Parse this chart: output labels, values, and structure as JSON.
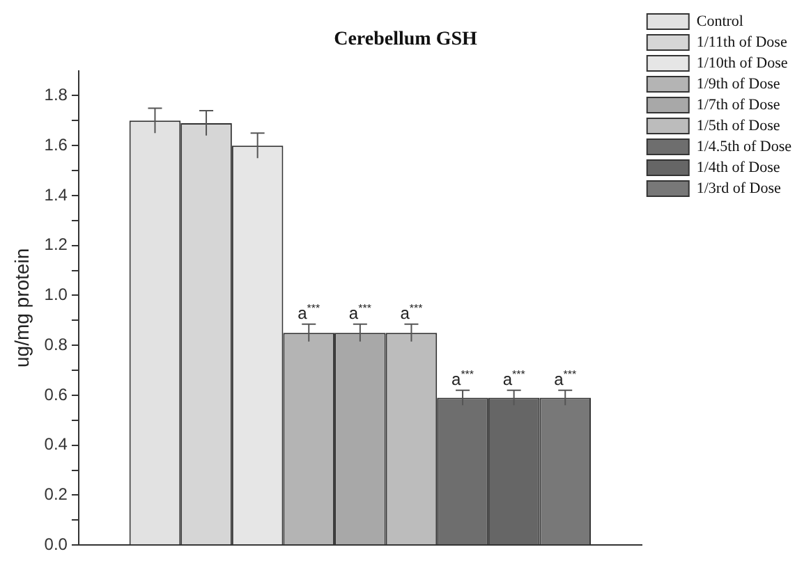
{
  "chart_data": {
    "type": "bar",
    "title": "Cerebellum GSH",
    "ylabel": "ug/mg protein",
    "categories": [
      null
    ],
    "series": [
      {
        "name": "Control",
        "color": "#e2e2e2",
        "values": [
          1.7
        ],
        "errors": [
          0.05
        ]
      },
      {
        "name": "1/11th of Dose",
        "color": "#d6d6d6",
        "values": [
          1.69
        ],
        "errors": [
          0.05
        ]
      },
      {
        "name": "1/10th of Dose",
        "color": "#e6e6e6",
        "values": [
          1.6
        ],
        "errors": [
          0.05
        ]
      },
      {
        "name": "1/9th of Dose",
        "color": "#b4b4b4",
        "values": [
          0.85
        ],
        "errors": [
          0.035
        ]
      },
      {
        "name": "1/7th of Dose",
        "color": "#a8a8a8",
        "values": [
          0.85
        ],
        "errors": [
          0.035
        ]
      },
      {
        "name": "1/5th of Dose",
        "color": "#bcbcbc",
        "values": [
          0.85
        ],
        "errors": [
          0.035
        ]
      },
      {
        "name": "1/4.5th of Dose",
        "color": "#6e6e6e",
        "values": [
          0.59
        ],
        "errors": [
          0.03
        ]
      },
      {
        "name": "1/4th of Dose",
        "color": "#666666",
        "values": [
          0.59
        ],
        "errors": [
          0.03
        ]
      },
      {
        "name": "1/3rd of Dose",
        "color": "#787878",
        "values": [
          0.59
        ],
        "errors": [
          0.03
        ]
      }
    ],
    "annotations": [
      {
        "text": "a$^{***}$",
        "y": 0.85
      },
      {
        "text": "a$^{***}$",
        "y": 0.85
      },
      {
        "text": "a$^{***}$",
        "y": 0.85
      },
      {
        "text": "a$^{***}$",
        "y": 0.59
      },
      {
        "text": "a$^{***}$",
        "y": 0.59
      },
      {
        "text": "a$^{***}$",
        "y": 0.59
      }
    ],
    "ylim": [
      0,
      1.9
    ],
    "yticks": [
      {
        "value": 0,
        "label": "0.0"
      },
      {
        "value": 0.1,
        "label": null
      },
      {
        "value": 0.2,
        "label": "0.2"
      },
      {
        "value": 0.3,
        "label": null
      },
      {
        "value": 0.4,
        "label": "0.4"
      },
      {
        "value": 0.5,
        "label": null
      },
      {
        "value": 0.6,
        "label": "0.6"
      },
      {
        "value": 0.7,
        "label": null
      },
      {
        "value": 0.8,
        "label": "0.8"
      },
      {
        "value": 0.9,
        "label": null
      },
      {
        "value": 1.0,
        "label": "1.0"
      },
      {
        "value": 1.1,
        "label": null
      },
      {
        "value": 1.2,
        "label": "1.2"
      },
      {
        "value": 1.3,
        "label": null
      },
      {
        "value": 1.4,
        "label": "1.4"
      },
      {
        "value": 1.5,
        "label": null
      },
      {
        "value": 1.6,
        "label": "1.6"
      },
      {
        "value": 1.7,
        "label": null
      },
      {
        "value": 1.8,
        "label": "1.8"
      }
    ],
    "legend": "right",
    "grid": false
  }
}
